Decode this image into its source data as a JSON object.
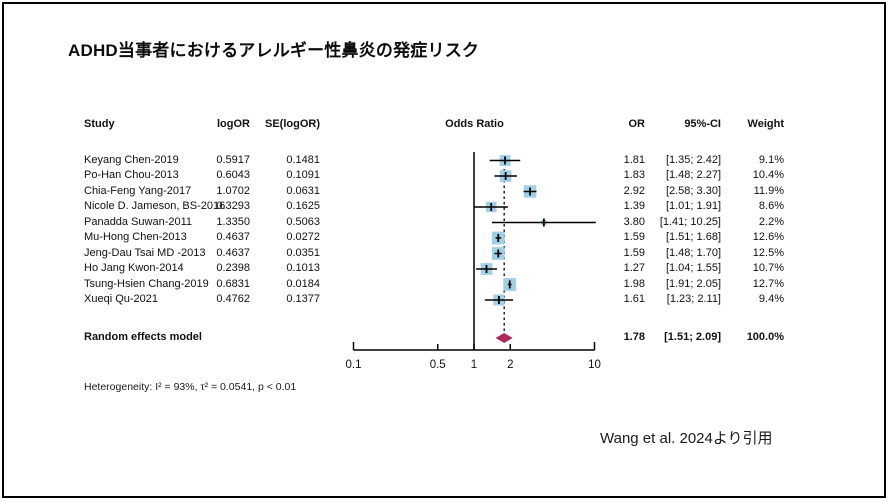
{
  "title": "ADHD当事者におけるアレルギー性鼻炎の発症リスク",
  "citation": "Wang et al. 2024より引用",
  "table": {
    "headers": {
      "study": "Study",
      "logor": "logOR",
      "se": "SE(logOR)",
      "plot": "Odds Ratio",
      "or": "OR",
      "ci": "95%-CI",
      "weight": "Weight"
    }
  },
  "footer": {
    "heterogeneity": "Heterogeneity: I² = 93%, τ² = 0.0541, p < 0.01"
  },
  "chart_data": {
    "type": "forest",
    "x_scale": "log",
    "xlabel": "Odds Ratio",
    "axis_ticks": [
      "0.1",
      "0.5",
      "1",
      "2",
      "10"
    ],
    "axis_range": [
      0.1,
      10
    ],
    "reference_line": 1,
    "pooled_dashed_line": 1.78,
    "studies": [
      {
        "name": "Keyang Chen-2019",
        "logOR": "0.5917",
        "SE": "0.1481",
        "or": 1.81,
        "lo": 1.35,
        "hi": 2.42,
        "weight": 9.1,
        "or_text": "1.81",
        "ci_text": "[1.35; 2.42]",
        "weight_text": "9.1%"
      },
      {
        "name": "Po-Han Chou-2013",
        "logOR": "0.6043",
        "SE": "0.1091",
        "or": 1.83,
        "lo": 1.48,
        "hi": 2.27,
        "weight": 10.4,
        "or_text": "1.83",
        "ci_text": "[1.48; 2.27]",
        "weight_text": "10.4%"
      },
      {
        "name": "Chia-Feng Yang-2017",
        "logOR": "1.0702",
        "SE": "0.0631",
        "or": 2.92,
        "lo": 2.58,
        "hi": 3.3,
        "weight": 11.9,
        "or_text": "2.92",
        "ci_text": "[2.58; 3.30]",
        "weight_text": "11.9%"
      },
      {
        "name": "Nicole D. Jameson, BS-2016",
        "logOR": "0.3293",
        "SE": "0.1625",
        "or": 1.39,
        "lo": 1.01,
        "hi": 1.91,
        "weight": 8.6,
        "or_text": "1.39",
        "ci_text": "[1.01; 1.91]",
        "weight_text": "8.6%"
      },
      {
        "name": "Panadda Suwan-2011",
        "logOR": "1.3350",
        "SE": "0.5063",
        "or": 3.8,
        "lo": 1.41,
        "hi": 10.25,
        "weight": 2.2,
        "or_text": "3.80",
        "ci_text": "[1.41; 10.25]",
        "weight_text": "2.2%"
      },
      {
        "name": "Mu-Hong Chen-2013",
        "logOR": "0.4637",
        "SE": "0.0272",
        "or": 1.59,
        "lo": 1.51,
        "hi": 1.68,
        "weight": 12.6,
        "or_text": "1.59",
        "ci_text": "[1.51; 1.68]",
        "weight_text": "12.6%"
      },
      {
        "name": "Jeng-Dau Tsai MD -2013",
        "logOR": "0.4637",
        "SE": "0.0351",
        "or": 1.59,
        "lo": 1.48,
        "hi": 1.7,
        "weight": 12.5,
        "or_text": "1.59",
        "ci_text": "[1.48; 1.70]",
        "weight_text": "12.5%"
      },
      {
        "name": "Ho Jang Kwon-2014",
        "logOR": "0.2398",
        "SE": "0.1013",
        "or": 1.27,
        "lo": 1.04,
        "hi": 1.55,
        "weight": 10.7,
        "or_text": "1.27",
        "ci_text": "[1.04; 1.55]",
        "weight_text": "10.7%"
      },
      {
        "name": "Tsung-Hsien Chang-2019",
        "logOR": "0.6831",
        "SE": "0.0184",
        "or": 1.98,
        "lo": 1.91,
        "hi": 2.05,
        "weight": 12.7,
        "or_text": "1.98",
        "ci_text": "[1.91; 2.05]",
        "weight_text": "12.7%"
      },
      {
        "name": "Xueqi Qu-2021",
        "logOR": "0.4762",
        "SE": "0.1377",
        "or": 1.61,
        "lo": 1.23,
        "hi": 2.11,
        "weight": 9.4,
        "or_text": "1.61",
        "ci_text": "[1.23; 2.11]",
        "weight_text": "9.4%"
      }
    ],
    "pooled": {
      "label": "Random effects model",
      "or": 1.78,
      "lo": 1.51,
      "hi": 2.09,
      "or_text": "1.78",
      "ci_text": "[1.51; 2.09]",
      "weight_text": "100.0%"
    },
    "colors": {
      "square": "#a0cfe6",
      "diamond": "#b0275a",
      "line": "#000000"
    }
  }
}
